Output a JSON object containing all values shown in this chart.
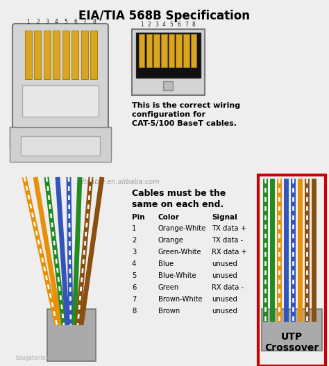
{
  "title": "EIA/TIA 568B Specification",
  "background_color": "#eeeeee",
  "text_color": "#000000",
  "correct_wiring_text": "This is the correct wiring\nconfiguration for\nCAT-5/100 BaseT cables.",
  "cables_text": "Cables must be the\nsame on each end.",
  "watermark": "xdtcable.en.alibaba.com",
  "watermark2": "bougetonle.com",
  "pin_data": [
    {
      "pin": "1",
      "color": "Orange-White",
      "signal": "TX data +"
    },
    {
      "pin": "2",
      "color": "Orange",
      "signal": "TX data -"
    },
    {
      "pin": "3",
      "color": "Green-White",
      "signal": "RX data +"
    },
    {
      "pin": "4",
      "color": "Blue",
      "signal": "unused"
    },
    {
      "pin": "5",
      "color": "Blue-White",
      "signal": "unused"
    },
    {
      "pin": "6",
      "color": "Green",
      "signal": "RX data -"
    },
    {
      "pin": "7",
      "color": "Brown-White",
      "signal": "unused"
    },
    {
      "pin": "8",
      "color": "Brown",
      "signal": "unused"
    }
  ],
  "wire_colors_568b": [
    [
      "#E8900A",
      "#FFFFFF"
    ],
    [
      "#E8900A",
      null
    ],
    [
      "#228B22",
      "#FFFFFF"
    ],
    [
      "#3355BB",
      null
    ],
    [
      "#3355BB",
      "#FFFFFF"
    ],
    [
      "#228B22",
      null
    ],
    [
      "#8B5010",
      "#FFFFFF"
    ],
    [
      "#8B5010",
      null
    ]
  ],
  "crossover_order": [
    2,
    5,
    0,
    3,
    4,
    1,
    6,
    7
  ],
  "utp_label": "UTP\nCrossover",
  "border_color": "#CC0000"
}
